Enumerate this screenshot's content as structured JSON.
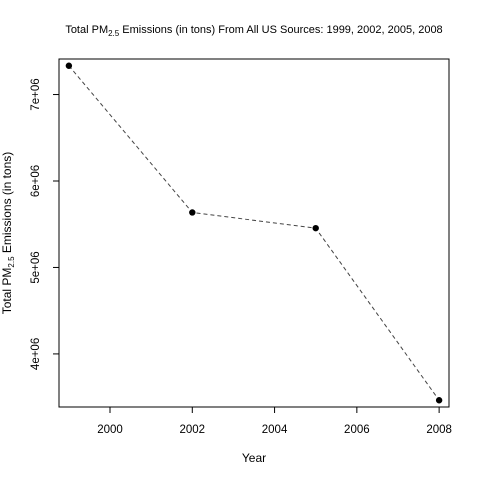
{
  "chart_data": {
    "type": "line",
    "title": {
      "prefix": "Total PM",
      "subscript": "2.5",
      "suffix": " Emissions (in tons) From All US Sources: 1999, 2002, 2005, 2008"
    },
    "xlabel": "Year",
    "ylabel": {
      "prefix": "Total PM",
      "subscript": "2.5",
      "suffix": " Emissions (in tons)"
    },
    "x": [
      1999,
      2002,
      2005,
      2008
    ],
    "y": [
      7332967,
      5635780,
      5454703,
      3464206
    ],
    "xlim": [
      1998.76,
      2008.24
    ],
    "ylim": [
      3386000,
      7411000
    ],
    "xticks": [
      2000,
      2002,
      2004,
      2006,
      2008
    ],
    "xtick_labels": [
      "2000",
      "2002",
      "2004",
      "2006",
      "2008"
    ],
    "yticks": [
      4000000,
      5000000,
      6000000,
      7000000
    ],
    "ytick_labels": [
      "4e+06",
      "5e+06",
      "6e+06",
      "7e+06"
    ],
    "line_style": "dashed",
    "marker": "filled-circle",
    "grid": false,
    "legend": "none",
    "colors": {
      "line": "#444444",
      "marker": "#000000",
      "frame": "#000000"
    }
  }
}
